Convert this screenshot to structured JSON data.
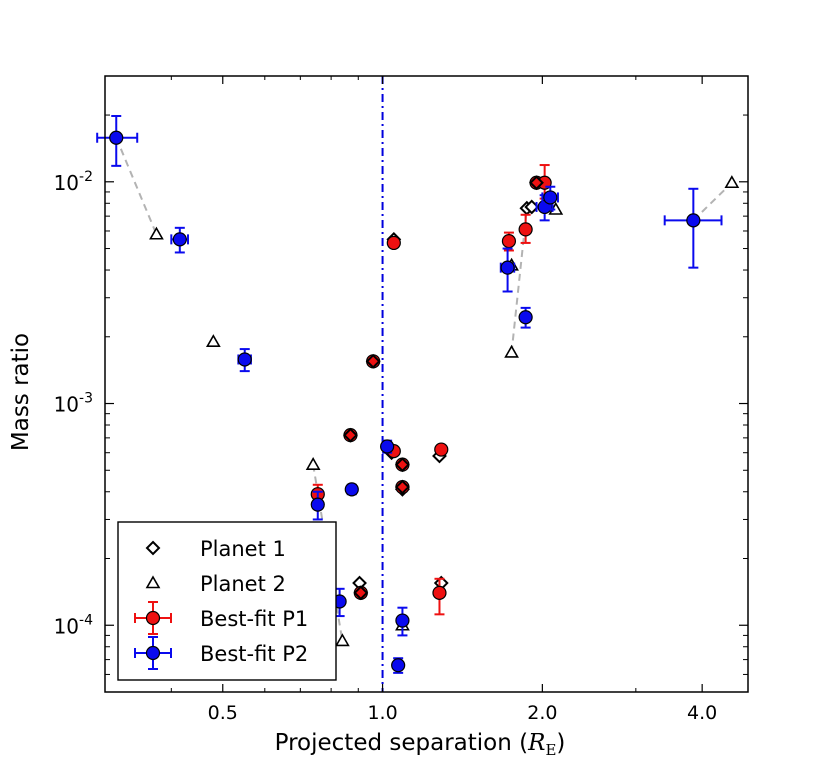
{
  "chart_data": {
    "type": "scatter",
    "title": "",
    "xlabel": "Projected separation (",
    "xlabel_symbol": "R",
    "xlabel_subscript": "E",
    "xlabel_close": ")",
    "ylabel": "Mass ratio",
    "x_scale": "log",
    "y_scale": "log",
    "xlim": [
      0.3,
      4.88
    ],
    "ylim": [
      5e-05,
      0.03
    ],
    "x_ticks": [
      {
        "value": 0.5,
        "label": "0.5"
      },
      {
        "value": 1.0,
        "label": "1.0"
      },
      {
        "value": 2.0,
        "label": "2.0"
      },
      {
        "value": 4.0,
        "label": "4.0"
      }
    ],
    "y_ticks": [
      {
        "value": 0.0001,
        "base": "10",
        "exp": "-4"
      },
      {
        "value": 0.001,
        "base": "10",
        "exp": "-3"
      },
      {
        "value": 0.01,
        "base": "10",
        "exp": "-2"
      }
    ],
    "vline": {
      "x": 1.0,
      "style": "dash-dot",
      "color": "#0000dd"
    },
    "colors": {
      "p1": "#ee1111",
      "p2": "#0a0aee",
      "marker_edge": "#000000",
      "guide": "#b3b3b3"
    },
    "legend": {
      "position": "lower-left",
      "entries": [
        {
          "label": "Planet 1",
          "marker": "diamond-open"
        },
        {
          "label": "Planet 2",
          "marker": "triangle-open"
        },
        {
          "label": "Best-fit P1",
          "marker": "circle-red-errorbar"
        },
        {
          "label": "Best-fit P2",
          "marker": "circle-blue-errorbar"
        }
      ]
    },
    "series": [
      {
        "name": "Planet 1",
        "marker": "diamond-open",
        "points": [
          {
            "x": 1.05,
            "y": 0.0055
          },
          {
            "x": 1.28,
            "y": 0.00058
          },
          {
            "x": 1.09,
            "y": 0.00041
          },
          {
            "x": 1.04,
            "y": 0.0006
          },
          {
            "x": 0.905,
            "y": 0.000155
          },
          {
            "x": 1.29,
            "y": 0.000155
          },
          {
            "x": 1.87,
            "y": 0.0076
          },
          {
            "x": 1.91,
            "y": 0.0077
          },
          {
            "x": 1.95,
            "y": 0.0099
          }
        ]
      },
      {
        "name": "Planet 2",
        "marker": "triangle-open",
        "points": [
          {
            "x": 0.375,
            "y": 0.0058
          },
          {
            "x": 0.48,
            "y": 0.0019
          },
          {
            "x": 0.74,
            "y": 0.00053
          },
          {
            "x": 0.84,
            "y": 8.5e-05
          },
          {
            "x": 1.09,
            "y": 0.0001
          },
          {
            "x": 1.75,
            "y": 0.0042
          },
          {
            "x": 1.75,
            "y": 0.0017
          },
          {
            "x": 2.12,
            "y": 0.0075
          },
          {
            "x": 4.55,
            "y": 0.0099
          }
        ]
      },
      {
        "name": "Best-fit P1",
        "marker": "circle-red",
        "points": [
          {
            "x": 0.96,
            "y": 0.00155,
            "yerr": [
              0.0,
              0.0
            ]
          },
          {
            "x": 0.87,
            "y": 0.00072,
            "yerr": [
              0.0,
              0.0
            ]
          },
          {
            "x": 0.755,
            "y": 0.00039,
            "yerr": [
              3e-05,
              4e-05
            ]
          },
          {
            "x": 0.91,
            "y": 0.00014,
            "yerr": [
              0.0,
              0.0
            ]
          },
          {
            "x": 1.05,
            "y": 0.0053,
            "yerr": [
              0.0,
              0.0
            ]
          },
          {
            "x": 1.05,
            "y": 0.00061,
            "yerr": [
              0.0,
              0.0
            ]
          },
          {
            "x": 1.09,
            "y": 0.00053,
            "yerr": [
              0.0,
              0.0
            ]
          },
          {
            "x": 1.09,
            "y": 0.00042,
            "yerr": [
              0.0,
              0.0
            ]
          },
          {
            "x": 1.29,
            "y": 0.00062,
            "yerr": [
              0.0,
              0.0
            ]
          },
          {
            "x": 1.28,
            "y": 0.00014,
            "yerr": [
              2.8e-05,
              2.2e-05
            ]
          },
          {
            "x": 1.73,
            "y": 0.0054,
            "yerr": [
              0.0005,
              0.0005
            ]
          },
          {
            "x": 1.86,
            "y": 0.0061,
            "yerr": [
              0.0008,
              0.001
            ]
          },
          {
            "x": 1.95,
            "y": 0.0099,
            "yerr": [
              0.0,
              0.0
            ]
          },
          {
            "x": 2.02,
            "y": 0.0099,
            "yerr": [
              0.0015,
              0.002
            ]
          }
        ]
      },
      {
        "name": "Best-fit P2",
        "marker": "circle-blue",
        "points": [
          {
            "x": 0.315,
            "y": 0.0158,
            "xerr": [
              0.025,
              0.03
            ],
            "yerr": [
              0.004,
              0.004
            ]
          },
          {
            "x": 0.415,
            "y": 0.0055,
            "xerr": [
              0.015,
              0.015
            ],
            "yerr": [
              0.0007,
              0.0007
            ]
          },
          {
            "x": 0.55,
            "y": 0.00158,
            "xerr": [
              0.015,
              0.015
            ],
            "yerr": [
              0.00018,
              0.00018
            ]
          },
          {
            "x": 0.755,
            "y": 0.00035,
            "xerr": [
              0.0,
              0.0
            ],
            "yerr": [
              5e-05,
              5e-05
            ]
          },
          {
            "x": 0.875,
            "y": 0.00041,
            "xerr": [
              0.0,
              0.0
            ],
            "yerr": [
              2e-05,
              2e-05
            ]
          },
          {
            "x": 0.83,
            "y": 0.000128,
            "xerr": [
              0.0,
              0.0
            ],
            "yerr": [
              1.8e-05,
              1.8e-05
            ]
          },
          {
            "x": 1.02,
            "y": 0.00064,
            "xerr": [
              0.0,
              0.0
            ],
            "yerr": [
              4e-05,
              4e-05
            ]
          },
          {
            "x": 1.07,
            "y": 6.6e-05,
            "xerr": [
              0.0,
              0.0
            ],
            "yerr": [
              5e-06,
              5e-06
            ]
          },
          {
            "x": 1.09,
            "y": 0.000105,
            "xerr": [
              0.0,
              0.0
            ],
            "yerr": [
              1.5e-05,
              1.5e-05
            ]
          },
          {
            "x": 1.72,
            "y": 0.0041,
            "xerr": [
              0.05,
              0.05
            ],
            "yerr": [
              0.0009,
              0.0009
            ]
          },
          {
            "x": 1.86,
            "y": 0.00245,
            "xerr": [
              0.0,
              0.0
            ],
            "yerr": [
              0.00025,
              0.00025
            ]
          },
          {
            "x": 2.02,
            "y": 0.0077,
            "xerr": [
              0.07,
              0.07
            ],
            "yerr": [
              0.001,
              0.001
            ]
          },
          {
            "x": 2.07,
            "y": 0.0085,
            "xerr": [
              0.07,
              0.07
            ],
            "yerr": [
              0.001,
              0.001
            ]
          },
          {
            "x": 3.85,
            "y": 0.0067,
            "xerr": [
              0.45,
              0.5
            ],
            "yerr": [
              0.0026,
              0.0026
            ]
          }
        ]
      }
    ],
    "guides": [
      [
        [
          0.315,
          0.0158
        ],
        [
          0.375,
          0.0058
        ]
      ],
      [
        [
          0.74,
          0.00053
        ],
        [
          0.84,
          8.5e-05
        ]
      ],
      [
        [
          1.75,
          0.0017
        ],
        [
          1.87,
          0.0076
        ]
      ],
      [
        [
          3.85,
          0.0067
        ],
        [
          4.55,
          0.0099
        ]
      ]
    ]
  }
}
